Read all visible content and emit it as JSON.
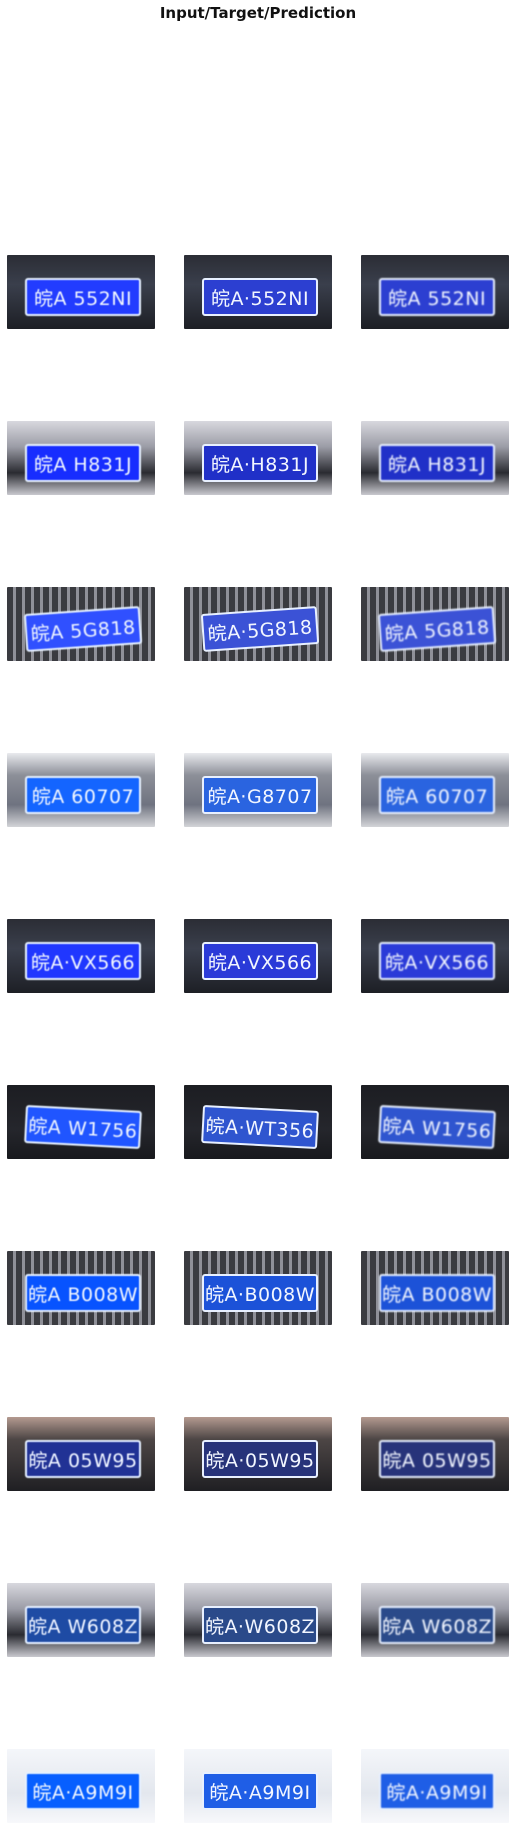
{
  "title": "Input/Target/Prediction",
  "columns": [
    "input",
    "target",
    "prediction"
  ],
  "rows": [
    {
      "input": "皖A 552NI",
      "target": "皖A·552NI",
      "prediction": "皖A 552NI",
      "scene": "dark",
      "plate_color": "#2c3fd1"
    },
    {
      "input": "皖A H831J",
      "target": "皖A·H831J",
      "prediction": "皖A H831J",
      "scene": "silver",
      "plate_color": "#2030c8"
    },
    {
      "input": "皖A 5G818",
      "target": "皖A·5G818",
      "prediction": "皖A 5G818",
      "scene": "grille",
      "plate_color": "#3b52d6"
    },
    {
      "input": "皖A 60707",
      "target": "皖A·G8707",
      "prediction": "皖A 60707",
      "scene": "bright",
      "plate_color": "#2a64e0"
    },
    {
      "input": "皖A·VX566",
      "target": "皖A·VX566",
      "prediction": "皖A·VX566",
      "scene": "dark",
      "plate_color": "#2a3ad8"
    },
    {
      "input": "皖A W1756",
      "target": "皖A·WT356",
      "prediction": "皖A W1756",
      "scene": "black",
      "plate_color": "#2f55cf"
    },
    {
      "input": "皖A B008W",
      "target": "皖A·B008W",
      "prediction": "皖A B008W",
      "scene": "grille",
      "plate_color": "#1c52d8"
    },
    {
      "input": "皖A 05W95",
      "target": "皖A·05W95",
      "prediction": "皖A 05W95",
      "scene": "muted",
      "plate_color": "#27337a"
    },
    {
      "input": "皖A W608Z",
      "target": "皖A·W608Z",
      "prediction": "皖A W608Z",
      "scene": "silver",
      "plate_color": "#2a4a8a"
    },
    {
      "input": "皖A·A9M9I",
      "target": "皖A·A9M9I",
      "prediction": "皖A·A9M9I",
      "scene": "white",
      "plate_color": "#1f5ee6"
    }
  ]
}
